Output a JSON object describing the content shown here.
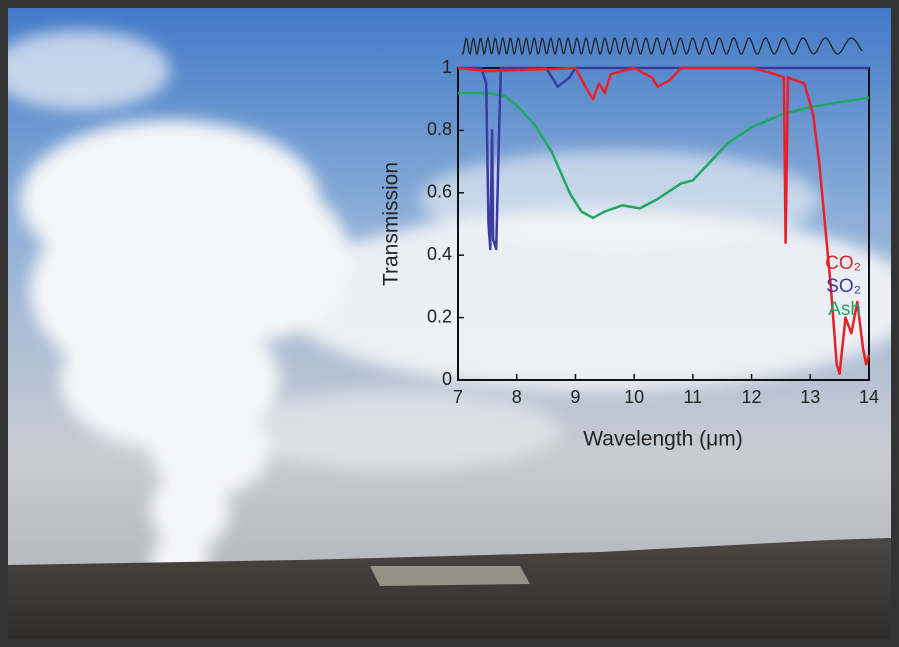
{
  "chart_data": {
    "type": "line",
    "xlabel": "Wavelength (μm)",
    "ylabel": "Transmission",
    "xlim": [
      7,
      14
    ],
    "xticks": [
      7,
      8,
      9,
      10,
      11,
      12,
      13,
      14
    ],
    "ylim": [
      0,
      1
    ],
    "yticks": [
      0,
      0.2,
      0.4,
      0.6,
      0.8,
      1
    ],
    "legend": "lower right",
    "series": [
      {
        "name": "CO₂",
        "color": "#e8202a",
        "x": [
          7,
          7.5,
          9,
          9.2,
          9.3,
          9.4,
          9.5,
          9.6,
          10,
          10.3,
          10.4,
          10.6,
          10.8,
          12,
          12.4,
          12.55,
          12.58,
          12.62,
          12.9,
          13.05,
          13.15,
          13.25,
          13.35,
          13.45,
          13.5,
          13.6,
          13.7,
          13.8,
          13.9,
          13.95,
          14
        ],
        "values": [
          1,
          0.99,
          1,
          0.93,
          0.9,
          0.95,
          0.92,
          0.98,
          1,
          0.97,
          0.94,
          0.96,
          1,
          1,
          0.98,
          0.97,
          0.44,
          0.97,
          0.95,
          0.85,
          0.7,
          0.5,
          0.3,
          0.05,
          0.02,
          0.2,
          0.15,
          0.25,
          0.1,
          0.05,
          0.08
        ]
      },
      {
        "name": "SO₂",
        "color": "#3a3aa0",
        "x": [
          7,
          7.4,
          7.48,
          7.52,
          7.55,
          7.58,
          7.6,
          7.65,
          7.7,
          7.73,
          8.5,
          8.7,
          8.9,
          9,
          14
        ],
        "values": [
          1,
          1,
          0.95,
          0.5,
          0.42,
          0.8,
          0.45,
          0.42,
          0.8,
          1,
          1,
          0.94,
          0.97,
          1,
          1
        ]
      },
      {
        "name": "Ash",
        "color": "#1fa860",
        "x": [
          7,
          7.5,
          7.8,
          8,
          8.3,
          8.6,
          8.9,
          9.1,
          9.3,
          9.5,
          9.8,
          10.1,
          10.4,
          10.8,
          11,
          11.3,
          11.6,
          12,
          12.5,
          13,
          13.5,
          14
        ],
        "values": [
          0.92,
          0.92,
          0.91,
          0.88,
          0.82,
          0.73,
          0.6,
          0.54,
          0.52,
          0.54,
          0.56,
          0.55,
          0.58,
          0.63,
          0.64,
          0.7,
          0.76,
          0.81,
          0.85,
          0.875,
          0.89,
          0.905
        ]
      }
    ]
  }
}
